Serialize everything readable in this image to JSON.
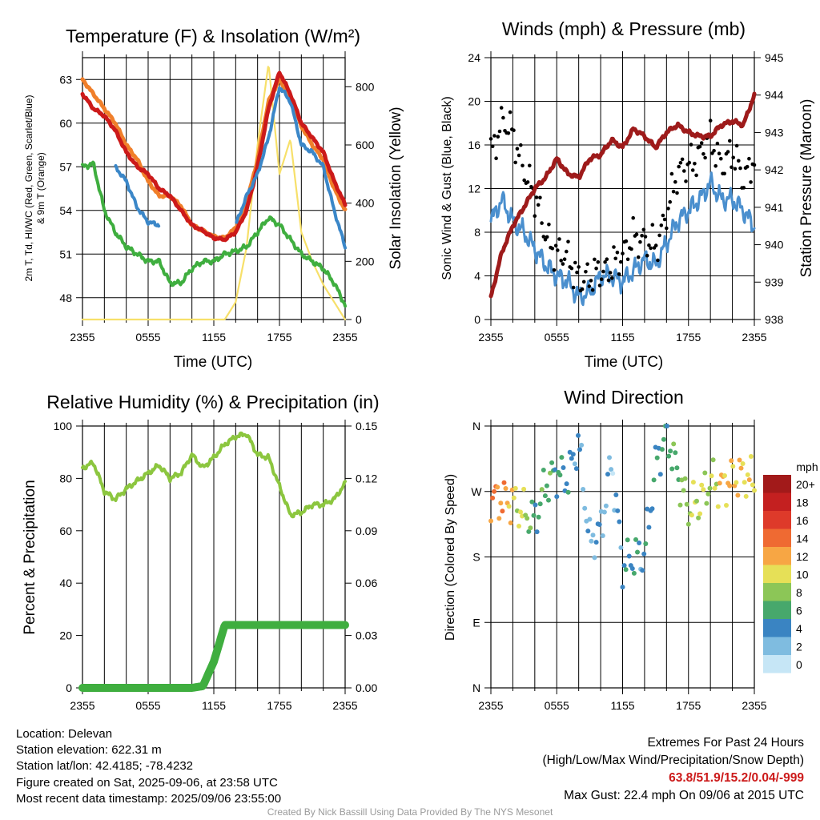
{
  "panels": {
    "temp": {
      "title": "Temperature (F) & Insolation (W/m²)",
      "ylabel_left": [
        "2m T, Td, HI/WC (Red, Green, Scarlet/Blue)",
        "& 9m T (Orange)"
      ],
      "ylabel_right": "Solar Insolation (Yellow)",
      "xlabel": "Time (UTC)"
    },
    "wind": {
      "title": "Winds (mph) & Pressure (mb)",
      "ylabel_left": "Sonic Wind & Gust (Blue, Black)",
      "ylabel_right": "Station Pressure (Maroon)",
      "xlabel": "Time (UTC)"
    },
    "rh": {
      "title": "Relative Humidity (%) & Precipitation (in)",
      "ylabel_left": "Percent & Precipitation"
    },
    "dir": {
      "title": "Wind Direction",
      "ylabel_left": "Direction (Colored By Speed)"
    }
  },
  "colorbar": {
    "unit": "mph",
    "labels": [
      "20+",
      "18",
      "16",
      "14",
      "12",
      "10",
      "8",
      "6",
      "4",
      "2",
      "0"
    ],
    "colors": [
      "#a21a1a",
      "#c42020",
      "#de3a2a",
      "#ef6a32",
      "#f7a644",
      "#e6e057",
      "#8cc657",
      "#47a86c",
      "#3a84c2",
      "#7fbce0",
      "#c6e6f6"
    ]
  },
  "chart_data": [
    {
      "type": "line",
      "title": "Temperature (F) & Insolation (W/m²)",
      "xlabel": "Time (UTC)",
      "ylabel": "2m T, Td, HI/WC (Red, Green, Scarlet/Blue) & 9m T (Orange)",
      "y2label": "Solar Insolation (Yellow)",
      "x_ticks": [
        "2355",
        "0555",
        "1155",
        "1755",
        "2355"
      ],
      "y_ticks": [
        48,
        51,
        54,
        57,
        60,
        63
      ],
      "y2_ticks": [
        0,
        200,
        400,
        600,
        800
      ],
      "ylim": [
        46.5,
        64.5
      ],
      "y2lim": [
        0,
        900
      ],
      "hours": [
        0,
        1,
        2,
        3,
        4,
        5,
        6,
        7,
        8,
        9,
        10,
        11,
        12,
        13,
        14,
        15,
        16,
        17,
        18,
        19,
        20,
        21,
        22,
        23,
        24
      ],
      "series": [
        {
          "name": "2m T",
          "color": "#cc1a1a",
          "values": [
            62.0,
            61.0,
            60.5,
            59.5,
            58.0,
            57.0,
            56.5,
            55.5,
            55.0,
            54.0,
            53.0,
            52.6,
            52.1,
            52.0,
            52.5,
            54.0,
            57.0,
            61.0,
            63.5,
            62.0,
            60.0,
            59.0,
            58.0,
            56.0,
            54.4
          ]
        },
        {
          "name": "9m T",
          "color": "#f07f2a",
          "values": [
            63.0,
            62.0,
            61.0,
            60.0,
            58.5,
            57.5,
            56.0,
            55.0,
            55.0,
            54.3,
            53.0,
            52.6,
            52.2,
            52.1,
            52.8,
            54.5,
            57.5,
            61.5,
            63.0,
            61.8,
            59.8,
            58.5,
            57.5,
            55.5,
            54.0
          ]
        },
        {
          "name": "Td",
          "color": "#3fae3f",
          "values": [
            57.0,
            57.2,
            54.0,
            52.5,
            51.5,
            51.0,
            50.5,
            50.5,
            49.0,
            49.0,
            50.0,
            50.5,
            50.5,
            51.0,
            51.2,
            51.5,
            52.5,
            53.5,
            53.0,
            52.0,
            51.0,
            50.5,
            50.0,
            49.0,
            47.5
          ]
        },
        {
          "name": "HI/WC",
          "color": "#3b87c8",
          "values": [
            null,
            null,
            null,
            57.0,
            56.0,
            54.2,
            53.2,
            53.0,
            null,
            null,
            50.8,
            null,
            null,
            null,
            53.0,
            55.0,
            56.5,
            59.0,
            62.5,
            61.5,
            58.5,
            58.0,
            57.0,
            54.0,
            51.5
          ]
        },
        {
          "name": "Solar",
          "color": "#f7e06a",
          "y_axis": "right",
          "values": [
            0,
            0,
            0,
            0,
            0,
            0,
            0,
            0,
            0,
            0,
            0,
            0,
            0,
            0,
            60,
            250,
            600,
            880,
            500,
            620,
            300,
            200,
            120,
            60,
            0
          ]
        }
      ]
    },
    {
      "type": "line",
      "title": "Winds (mph) & Pressure (mb)",
      "xlabel": "Time (UTC)",
      "ylabel": "Sonic Wind & Gust (Blue, Black)",
      "y2label": "Station Pressure (Maroon)",
      "x_ticks": [
        "2355",
        "0555",
        "1155",
        "1755",
        "2355"
      ],
      "y_ticks": [
        0,
        4,
        8,
        12,
        16,
        20,
        24
      ],
      "y2_ticks": [
        938,
        939,
        940,
        941,
        942,
        943,
        944,
        945
      ],
      "ylim": [
        0,
        24
      ],
      "y2lim": [
        938,
        945
      ],
      "hours": [
        0,
        1,
        2,
        3,
        4,
        5,
        6,
        7,
        8,
        9,
        10,
        11,
        12,
        13,
        14,
        15,
        16,
        17,
        18,
        19,
        20,
        21,
        22,
        23,
        24
      ],
      "series": [
        {
          "name": "Sonic Wind",
          "color": "#4a8fce",
          "values": [
            9.0,
            11.0,
            9.0,
            8.0,
            6.5,
            5.0,
            4.0,
            3.5,
            2.0,
            2.5,
            4.0,
            4.0,
            3.5,
            4.5,
            5.5,
            5.0,
            7.0,
            9.0,
            10.0,
            11.0,
            12.5,
            11.0,
            11.0,
            10.0,
            8.5
          ]
        },
        {
          "name": "Gust",
          "color": "#000000",
          "values": [
            15.5,
            18.0,
            17.0,
            14.0,
            11.0,
            8.0,
            6.0,
            5.5,
            4.0,
            3.5,
            4.5,
            5.0,
            5.5,
            8.0,
            7.0,
            6.5,
            10.0,
            13.0,
            14.5,
            15.0,
            16.5,
            14.5,
            15.0,
            13.0,
            15.0
          ]
        },
        {
          "name": "Pressure",
          "color": "#9e1b1b",
          "y_axis": "right",
          "values": [
            938.6,
            939.8,
            940.5,
            941.0,
            941.5,
            941.8,
            942.3,
            941.9,
            941.8,
            942.3,
            942.4,
            942.8,
            942.6,
            943.1,
            942.9,
            942.6,
            943.0,
            943.2,
            943.0,
            942.9,
            942.9,
            943.2,
            943.3,
            943.2,
            944.0
          ]
        }
      ]
    },
    {
      "type": "line",
      "title": "Relative Humidity (%) & Precipitation (in)",
      "ylabel": "Percent & Precipitation",
      "x_ticks": [
        "2355",
        "0555",
        "1155",
        "1755",
        "2355"
      ],
      "y_ticks": [
        0,
        20,
        40,
        60,
        80,
        100
      ],
      "y2_ticks": [
        "0.00",
        "0.03",
        "0.06",
        "0.09",
        "0.12",
        "0.15"
      ],
      "ylim": [
        0,
        100
      ],
      "y2lim": [
        0,
        0.15
      ],
      "hours": [
        0,
        1,
        2,
        3,
        4,
        5,
        6,
        7,
        8,
        9,
        10,
        11,
        12,
        13,
        14,
        15,
        16,
        17,
        18,
        19,
        20,
        21,
        22,
        23,
        24
      ],
      "series": [
        {
          "name": "RH",
          "color": "#8cc63f",
          "values": [
            84,
            86,
            75,
            72,
            76,
            79,
            82,
            85,
            80,
            82,
            89,
            84,
            88,
            93,
            96,
            97,
            89,
            88,
            77,
            66,
            67,
            70,
            70,
            72,
            78
          ]
        },
        {
          "name": "Precipitation",
          "color": "#3fae3f",
          "y_axis": "right",
          "values": [
            0,
            0,
            0,
            0,
            0,
            0,
            0,
            0,
            0,
            0,
            0,
            0.001,
            0.015,
            0.036,
            0.036,
            0.036,
            0.036,
            0.036,
            0.036,
            0.036,
            0.036,
            0.036,
            0.036,
            0.036,
            0.036
          ]
        }
      ]
    },
    {
      "type": "scatter",
      "title": "Wind Direction",
      "ylabel": "Direction (Colored By Speed)",
      "x_ticks": [
        "2355",
        "0555",
        "1155",
        "1755",
        "2355"
      ],
      "y_ticks": [
        "N",
        "E",
        "S",
        "W",
        "N"
      ],
      "ylim": [
        0,
        360
      ],
      "hours": [
        0,
        1,
        2,
        3,
        4,
        5,
        6,
        7,
        8,
        9,
        10,
        11,
        12,
        13,
        14,
        15,
        16,
        17,
        18,
        19,
        20,
        21,
        22,
        23,
        24
      ],
      "series": [
        {
          "name": "Direction",
          "values": [
            268,
            265,
            262,
            245,
            235,
            285,
            300,
            290,
            340,
            200,
            215,
            310,
            165,
            175,
            178,
            300,
            345,
            290,
            240,
            250,
            280,
            272,
            285,
            290,
            280
          ]
        },
        {
          "name": "Speed",
          "values": [
            12,
            13,
            10,
            9,
            5,
            6,
            5,
            4,
            3,
            2,
            3,
            2,
            4,
            5,
            4,
            5,
            6,
            7,
            9,
            10,
            9,
            11,
            12,
            11,
            10
          ]
        }
      ]
    }
  ],
  "info": {
    "location": "Location: Delevan",
    "elevation": "Station elevation: 622.31 m",
    "latlon": "Station lat/lon: 42.4185; -78.4232",
    "created": "Figure created on Sat, 2025-09-06, at 23:58 UTC",
    "recent": "Most recent data timestamp: 2025/09/06 23:55:00"
  },
  "extremes": {
    "title": "Extremes For Past 24 Hours",
    "subtitle": "(High/Low/Max Wind/Precipitation/Snow Depth)",
    "values": "63.8/51.9/15.2/0.04/-999",
    "gust": "Max Gust: 22.4 mph On 09/06 at 2015 UTC"
  },
  "credit": "Created By Nick Bassill Using Data Provided By The NYS Mesonet"
}
